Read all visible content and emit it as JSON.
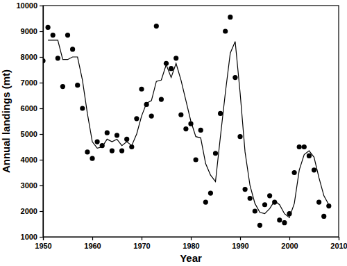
{
  "chart_data": {
    "type": "scatter",
    "x_label": "Year",
    "y_label": "Annual landings (mt)",
    "x": [
      1950,
      1951,
      1952,
      1953,
      1954,
      1955,
      1956,
      1957,
      1958,
      1959,
      1960,
      1961,
      1962,
      1963,
      1964,
      1965,
      1966,
      1967,
      1968,
      1969,
      1970,
      1971,
      1972,
      1973,
      1974,
      1975,
      1976,
      1977,
      1978,
      1979,
      1980,
      1981,
      1982,
      1983,
      1984,
      1985,
      1986,
      1987,
      1988,
      1989,
      1990,
      1991,
      1992,
      1993,
      1994,
      1995,
      1996,
      1997,
      1998,
      1999,
      2000,
      2001,
      2002,
      2003,
      2004,
      2005,
      2006,
      2007,
      2008
    ],
    "series": [
      {
        "type": "scatter",
        "marker": "circle",
        "color": "#000000",
        "values": [
          7850,
          9150,
          8850,
          7950,
          6850,
          8850,
          8300,
          6900,
          6000,
          4300,
          4050,
          4700,
          4550,
          5050,
          4350,
          4950,
          4350,
          4800,
          4500,
          5600,
          6750,
          6150,
          5700,
          9200,
          6350,
          7750,
          7550,
          7950,
          5750,
          5200,
          5400,
          4000,
          5150,
          2350,
          2700,
          4250,
          5800,
          9000,
          9550,
          7200,
          4900,
          2850,
          2500,
          2000,
          1450,
          2250,
          2600,
          2350,
          1650,
          1550,
          1900,
          3500,
          4500,
          4500,
          4150,
          3600,
          2350,
          1800,
          2200
        ]
      },
      {
        "type": "line",
        "line_style": "solid",
        "color": "#000000",
        "values": [
          null,
          8650,
          8650,
          8650,
          7900,
          7900,
          8000,
          8000,
          7100,
          5800,
          4700,
          4450,
          4500,
          4800,
          4700,
          4800,
          4550,
          4700,
          4550,
          5000,
          5700,
          6200,
          6300,
          7050,
          7100,
          7700,
          7200,
          7750,
          7100,
          6300,
          5500,
          4900,
          4850,
          3850,
          3400,
          3150,
          4900,
          6600,
          8150,
          8600,
          6600,
          4300,
          3000,
          2300,
          1950,
          1900,
          2100,
          2400,
          2250,
          1900,
          1750,
          2300,
          3600,
          4200,
          4350,
          4100,
          3300,
          2600,
          2250
        ]
      }
    ],
    "xlim": [
      1950,
      2010
    ],
    "xticks": [
      1950,
      1960,
      1970,
      1980,
      1990,
      2000,
      2010
    ],
    "ylim": [
      1000,
      10000
    ],
    "yticks": [
      1000,
      2000,
      3000,
      4000,
      5000,
      6000,
      7000,
      8000,
      9000,
      10000
    ],
    "grid": false
  }
}
